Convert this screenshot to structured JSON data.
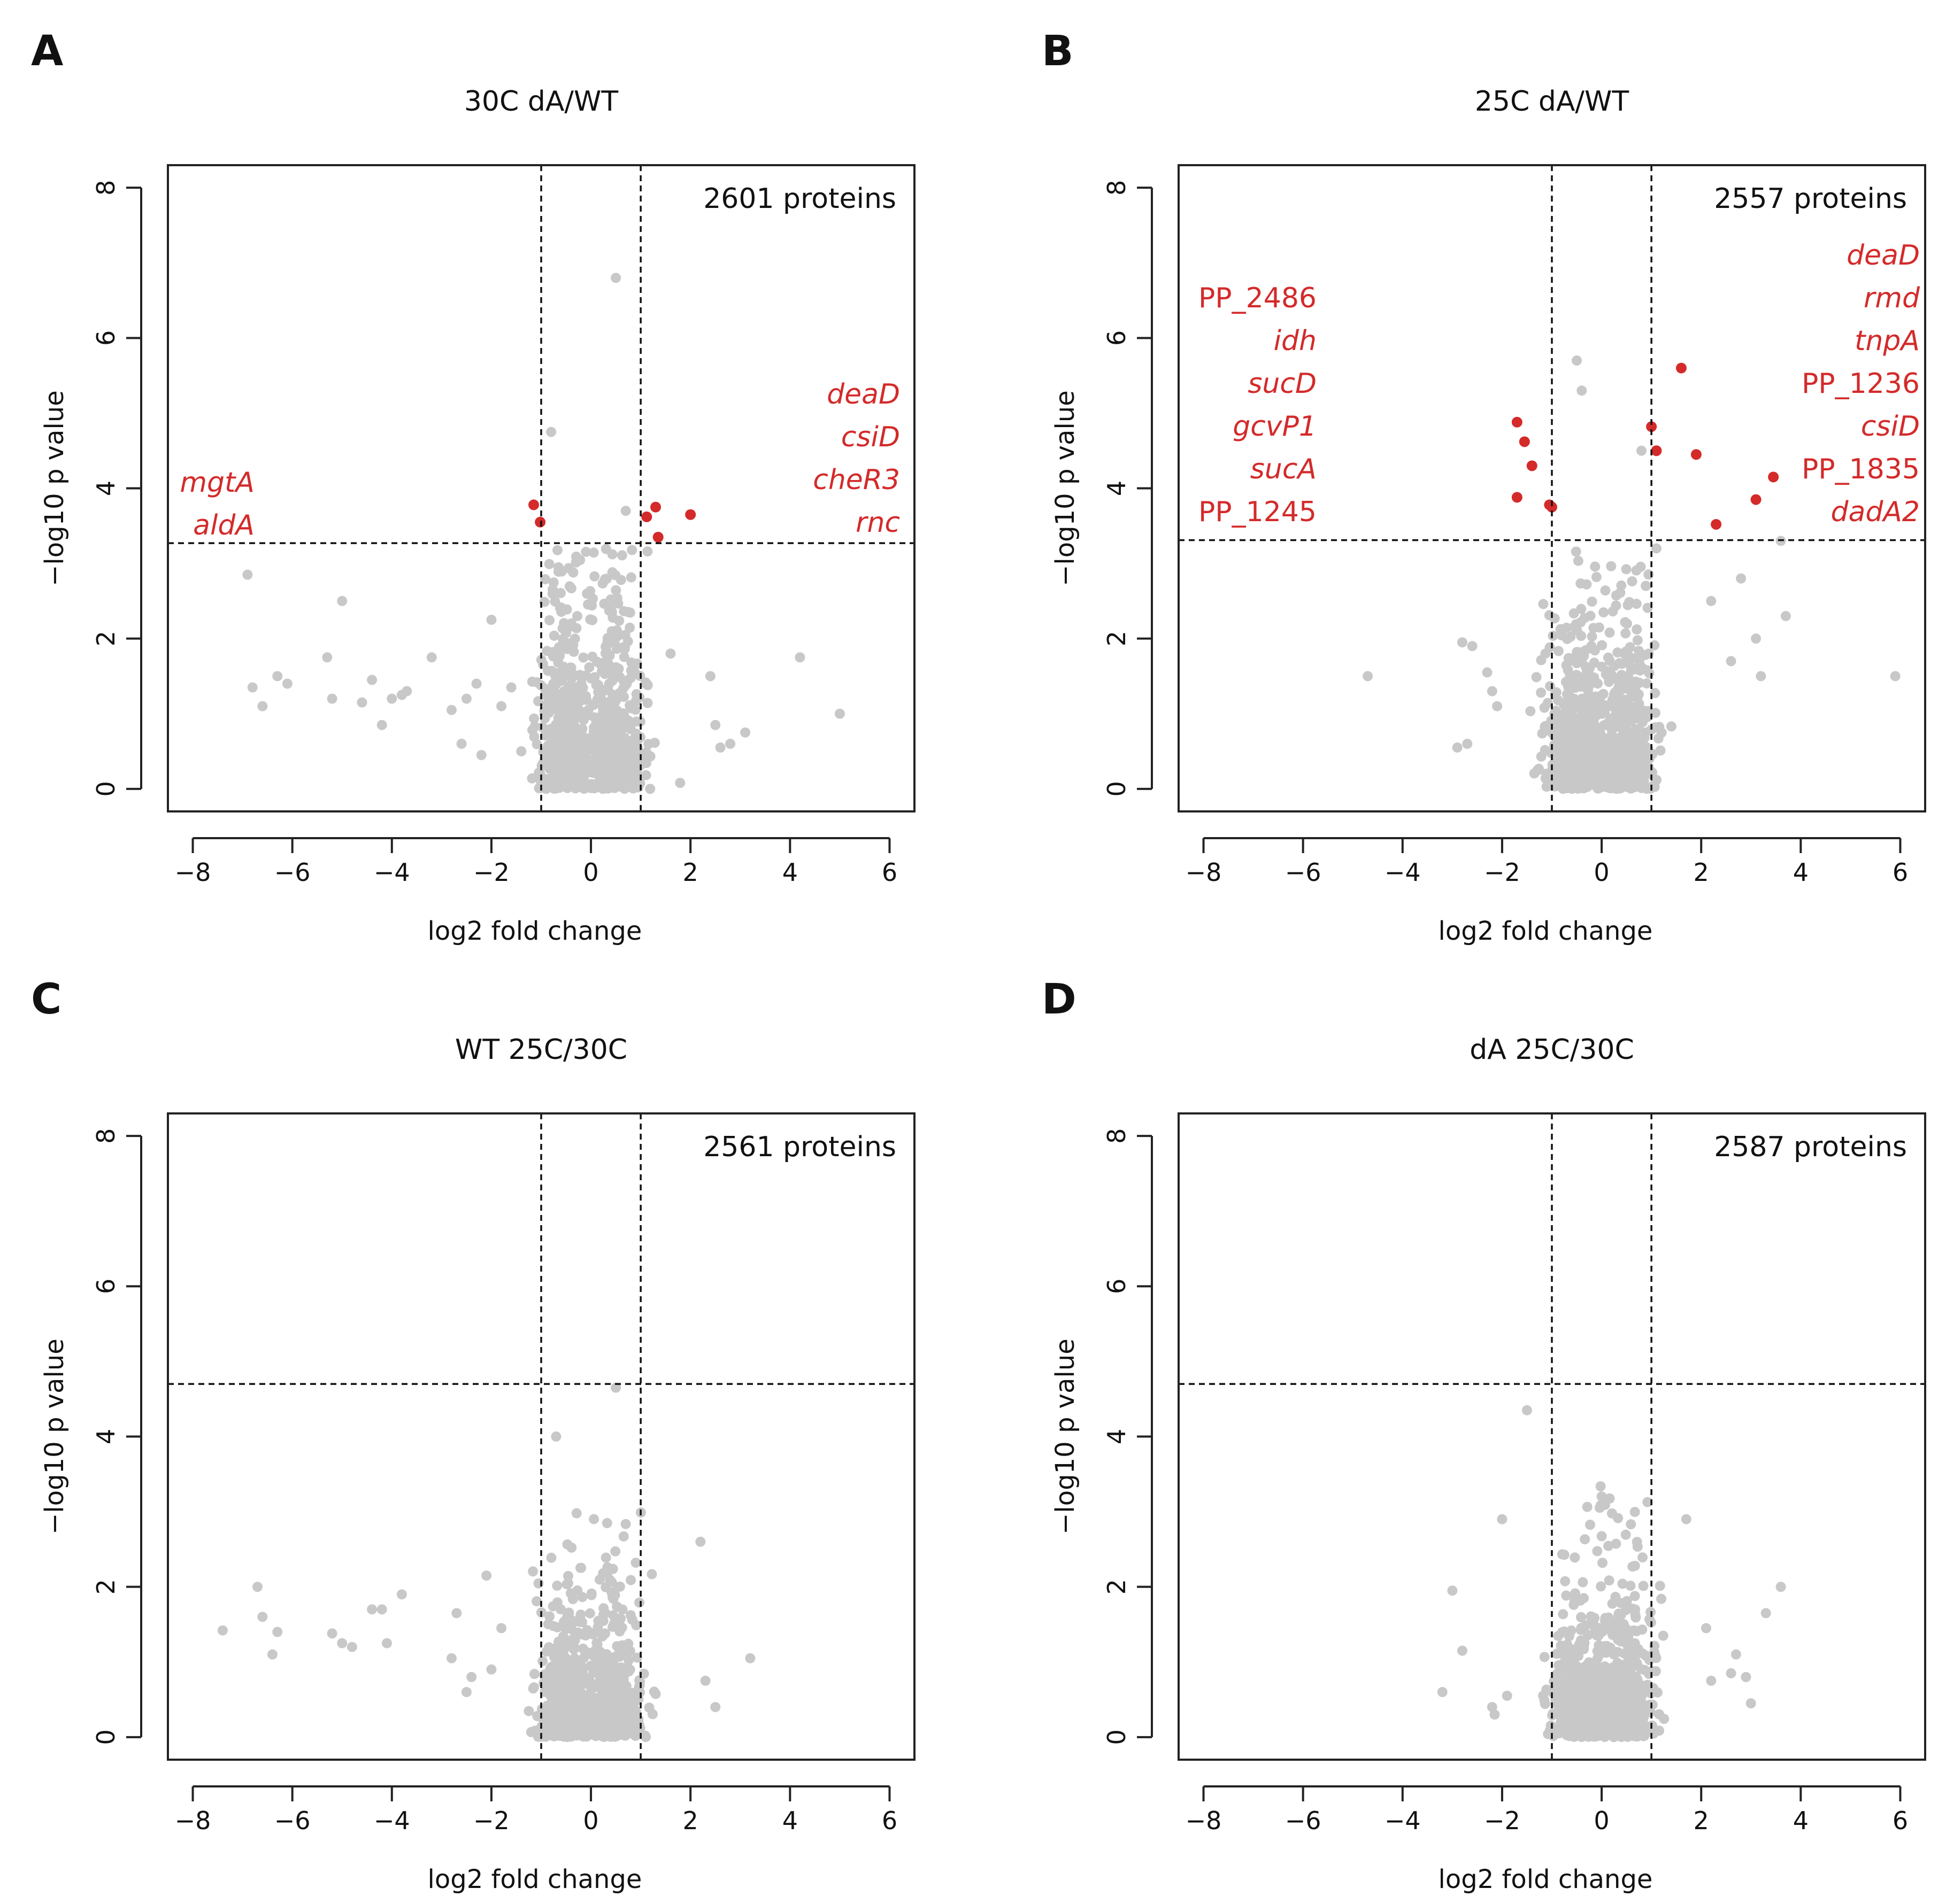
{
  "colors": {
    "background": "#ffffff",
    "axis": "#222222",
    "text": "#111111",
    "point": "#c8c8c8",
    "significant": "#d42a2a",
    "threshold_line": "#111111"
  },
  "chart_data": [
    {
      "type": "scatter",
      "panel_letter": "A",
      "title": "30C dA/WT",
      "xlabel": "log2 fold change",
      "ylabel": "−log10 p value",
      "xlim": [
        -8.5,
        6.5
      ],
      "ylim": [
        -0.3,
        8.3
      ],
      "xticks": [
        -8,
        -6,
        -4,
        -2,
        0,
        2,
        4,
        6
      ],
      "yticks": [
        0,
        2,
        4,
        6,
        8
      ],
      "xtick_labels": [
        "−8",
        "−6",
        "−4",
        "−2",
        "0",
        "2",
        "4",
        "6"
      ],
      "ytick_labels": [
        "0",
        "2",
        "4",
        "6",
        "8"
      ],
      "vlines": [
        -1,
        1
      ],
      "hline": 3.27,
      "protein_count_label": "2601 proteins",
      "labels_left": [
        "mgtA",
        "aldA"
      ],
      "labels_right": [
        "deaD",
        "csiD",
        "cheR3",
        "rnc"
      ],
      "labels_italic": true,
      "significant": {
        "x": [
          -1.15,
          -1.02,
          1.12,
          1.3,
          1.35,
          2.0
        ],
        "y": [
          3.78,
          3.55,
          3.62,
          3.75,
          3.35,
          3.65
        ]
      },
      "outliers": {
        "x": [
          -6.9,
          -6.8,
          -6.6,
          -6.3,
          -6.1,
          -5.3,
          -5.2,
          -5.0,
          -4.6,
          -4.4,
          -4.2,
          -4.0,
          -3.8,
          -3.7,
          -3.2,
          -2.8,
          -2.6,
          -2.5,
          -2.3,
          -2.2,
          -2.0,
          -1.8,
          -1.6,
          -1.4,
          1.6,
          2.4,
          2.6,
          2.8,
          2.5,
          3.1,
          4.2,
          5.0,
          -0.8,
          0.5,
          0.7
        ],
        "y": [
          2.85,
          1.35,
          1.1,
          1.5,
          1.4,
          1.75,
          1.2,
          2.5,
          1.15,
          1.45,
          0.85,
          1.2,
          1.25,
          1.3,
          1.75,
          1.05,
          0.6,
          1.2,
          1.4,
          0.45,
          2.25,
          1.1,
          1.35,
          0.5,
          1.8,
          1.5,
          0.55,
          0.6,
          0.85,
          0.75,
          1.75,
          1.0,
          4.75,
          6.8,
          3.7
        ]
      },
      "bulk": {
        "count": 900,
        "left_center": -0.5,
        "right_center": 0.5,
        "spread": 0.28,
        "y_decay": 0.75,
        "y_cap": 3.2,
        "seed": 11
      }
    },
    {
      "type": "scatter",
      "panel_letter": "B",
      "title": "25C dA/WT",
      "xlabel": "log2 fold change",
      "ylabel": "−log10 p value",
      "xlim": [
        -8.5,
        6.5
      ],
      "ylim": [
        -0.3,
        8.3
      ],
      "xticks": [
        -8,
        -6,
        -4,
        -2,
        0,
        2,
        4,
        6
      ],
      "yticks": [
        0,
        2,
        4,
        6,
        8
      ],
      "xtick_labels": [
        "−8",
        "−6",
        "−4",
        "−2",
        "0",
        "2",
        "4",
        "6"
      ],
      "ytick_labels": [
        "0",
        "2",
        "4",
        "6",
        "8"
      ],
      "vlines": [
        -1,
        1
      ],
      "hline": 3.31,
      "protein_count_label": "2557 proteins",
      "labels_left": [
        "PP_2486",
        "idh",
        "sucD",
        "gcvP1",
        "sucA",
        "PP_1245"
      ],
      "labels_left_italic": [
        false,
        true,
        true,
        true,
        true,
        false
      ],
      "labels_right": [
        "deaD",
        "rmd",
        "tnpA",
        "PP_1236",
        "csiD",
        "PP_1835",
        "dadA2"
      ],
      "labels_right_italic": [
        true,
        true,
        true,
        false,
        true,
        false,
        true
      ],
      "significant": {
        "x": [
          -1.7,
          -1.55,
          -1.4,
          -1.7,
          -1.05,
          -1.0,
          1.0,
          1.1,
          1.6,
          1.9,
          2.3,
          3.1,
          3.45
        ],
        "y": [
          4.88,
          4.62,
          4.3,
          3.88,
          3.78,
          3.75,
          4.82,
          4.5,
          5.6,
          4.45,
          3.52,
          3.85,
          4.15
        ]
      },
      "outliers": {
        "x": [
          -4.7,
          -2.8,
          -2.6,
          -2.3,
          -2.2,
          -2.1,
          -2.9,
          -2.7,
          2.6,
          2.8,
          3.1,
          3.2,
          3.6,
          3.7,
          5.9,
          -0.5,
          -0.4,
          0.8,
          1.1,
          2.2
        ],
        "y": [
          1.5,
          1.95,
          1.9,
          1.55,
          1.3,
          1.1,
          0.55,
          0.6,
          1.7,
          2.8,
          2.0,
          1.5,
          3.3,
          2.3,
          1.5,
          5.7,
          5.3,
          4.5,
          3.2,
          2.5
        ]
      },
      "bulk": {
        "count": 900,
        "left_center": -0.55,
        "right_center": 0.45,
        "spread": 0.3,
        "y_decay": 0.75,
        "y_cap": 3.25,
        "seed": 23
      }
    },
    {
      "type": "scatter",
      "panel_letter": "C",
      "title": "WT 25C/30C",
      "xlabel": "log2 fold change",
      "ylabel": "−log10 p value",
      "xlim": [
        -8.5,
        6.5
      ],
      "ylim": [
        -0.3,
        8.3
      ],
      "xticks": [
        -8,
        -6,
        -4,
        -2,
        0,
        2,
        4,
        6
      ],
      "yticks": [
        0,
        2,
        4,
        6,
        8
      ],
      "xtick_labels": [
        "−8",
        "−6",
        "−4",
        "−2",
        "0",
        "2",
        "4",
        "6"
      ],
      "ytick_labels": [
        "0",
        "2",
        "4",
        "6",
        "8"
      ],
      "vlines": [
        -1,
        1
      ],
      "hline": 4.7,
      "protein_count_label": "2561 proteins",
      "significant": {
        "x": [],
        "y": []
      },
      "outliers": {
        "x": [
          -7.4,
          -6.7,
          -6.6,
          -6.4,
          -6.3,
          -5.2,
          -5.0,
          -4.8,
          -4.4,
          -4.2,
          -4.1,
          -3.8,
          -2.8,
          -2.7,
          -2.5,
          -2.4,
          -2.1,
          -2.0,
          -1.8,
          2.2,
          2.3,
          2.5,
          3.2,
          0.5,
          -0.7
        ],
        "y": [
          1.42,
          2.0,
          1.6,
          1.1,
          1.4,
          1.38,
          1.25,
          1.2,
          1.7,
          1.7,
          1.25,
          1.9,
          1.05,
          1.65,
          0.6,
          0.8,
          2.15,
          0.9,
          1.45,
          2.6,
          0.75,
          0.4,
          1.05,
          4.65,
          4.0
        ]
      },
      "bulk": {
        "count": 900,
        "left_center": -0.45,
        "right_center": 0.45,
        "spread": 0.3,
        "y_decay": 0.6,
        "y_cap": 3.1,
        "seed": 37
      }
    },
    {
      "type": "scatter",
      "panel_letter": "D",
      "title": "dA 25C/30C",
      "xlabel": "log2 fold change",
      "ylabel": "−log10 p value",
      "xlim": [
        -8.5,
        6.5
      ],
      "ylim": [
        -0.3,
        8.3
      ],
      "xticks": [
        -8,
        -6,
        -4,
        -2,
        0,
        2,
        4,
        6
      ],
      "yticks": [
        0,
        2,
        4,
        6,
        8
      ],
      "xtick_labels": [
        "−8",
        "−6",
        "−4",
        "−2",
        "0",
        "2",
        "4",
        "6"
      ],
      "ytick_labels": [
        "0",
        "2",
        "4",
        "6",
        "8"
      ],
      "vlines": [
        -1,
        1
      ],
      "hline": 4.7,
      "protein_count_label": "2587 proteins",
      "significant": {
        "x": [],
        "y": []
      },
      "outliers": {
        "x": [
          -3.2,
          -3.0,
          -2.8,
          -2.2,
          -2.15,
          -2.0,
          -1.9,
          -1.5,
          2.6,
          2.7,
          2.9,
          3.0,
          3.3,
          3.6,
          2.1,
          2.2,
          1.7
        ],
        "y": [
          0.6,
          1.95,
          1.15,
          0.4,
          0.3,
          2.9,
          0.55,
          4.35,
          0.85,
          1.1,
          0.8,
          0.45,
          1.65,
          2.0,
          1.45,
          0.75,
          2.9
        ]
      },
      "bulk": {
        "count": 900,
        "left_center": -0.45,
        "right_center": 0.45,
        "spread": 0.3,
        "y_decay": 0.6,
        "y_cap": 3.4,
        "seed": 51
      }
    }
  ]
}
